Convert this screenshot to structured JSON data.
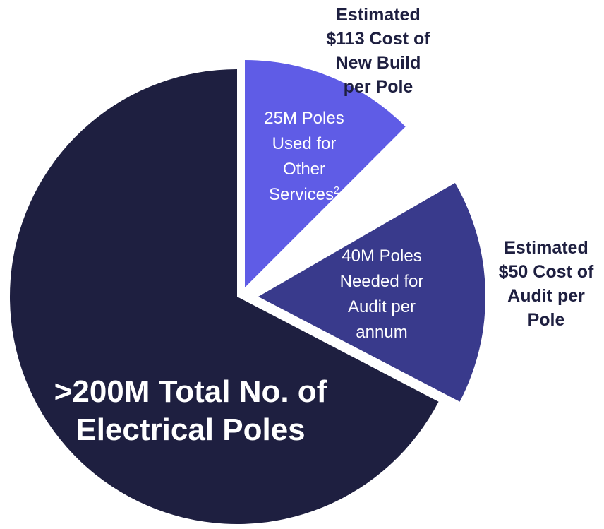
{
  "chart_data": {
    "type": "pie",
    "slices": [
      {
        "key": "total",
        "value": 200,
        "color": "#1e1f40",
        "label_lines": [
          ">200M Total No. of",
          "Electrical Poles"
        ]
      },
      {
        "key": "other",
        "value": 25,
        "color": "#5f5ce6",
        "label_lines": [
          "25M Poles",
          "Used for",
          "Other",
          "Services"
        ],
        "footnote": "2"
      },
      {
        "key": "audit",
        "value": 40,
        "color": "#393a8c",
        "label_lines": [
          "40M Poles",
          "Needed for",
          "Audit per",
          "annum"
        ]
      }
    ],
    "annotations": [
      {
        "key": "build",
        "lines": [
          "Estimated",
          "$113 Cost of",
          "New Build",
          "per Pole"
        ]
      },
      {
        "key": "audit",
        "lines": [
          "Estimated",
          "$50 Cost of",
          "Audit per",
          "Pole"
        ]
      }
    ]
  }
}
